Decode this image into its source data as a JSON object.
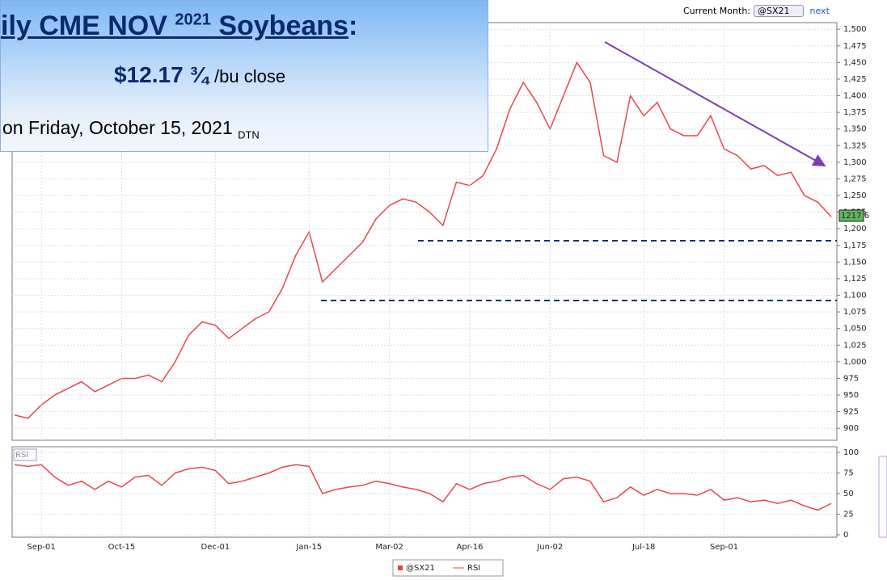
{
  "header": {
    "title_parts": [
      "ily CME NOV ",
      "2021",
      " Soybeans",
      ":"
    ],
    "price": "$12.17 ¾",
    "price_unit": "/bu close",
    "date": "on Friday, October 15, 2021",
    "source": "DTN"
  },
  "toolbar": {
    "label": "Current Month:",
    "symbol": "@SX21",
    "next": "next"
  },
  "last_price_tag": "1217 6",
  "chart_data": [
    {
      "type": "line",
      "series": [
        {
          "name": "@SX21",
          "color": "#e8474a",
          "values": [
            920,
            915,
            935,
            950,
            960,
            970,
            955,
            965,
            975,
            975,
            980,
            970,
            1000,
            1040,
            1060,
            1055,
            1035,
            1050,
            1065,
            1075,
            1110,
            1160,
            1195,
            1120,
            1140,
            1160,
            1180,
            1215,
            1235,
            1245,
            1240,
            1225,
            1205,
            1270,
            1265,
            1280,
            1320,
            1380,
            1420,
            1390,
            1350,
            1400,
            1450,
            1420,
            1310,
            1300,
            1400,
            1370,
            1390,
            1350,
            1340,
            1340,
            1370,
            1320,
            1310,
            1290,
            1295,
            1280,
            1285,
            1250,
            1240,
            1218
          ]
        }
      ],
      "ylim": [
        882,
        1510
      ],
      "yticks": [
        900,
        925,
        950,
        975,
        {
          "value": 1000,
          "label": "1,000"
        },
        {
          "value": 1025,
          "label": "1,025"
        },
        {
          "value": 1050,
          "label": "1,050"
        },
        {
          "value": 1075,
          "label": "1,075"
        },
        {
          "value": 1100,
          "label": "1,100"
        },
        {
          "value": 1125,
          "label": "1,125"
        },
        {
          "value": 1150,
          "label": "1,150"
        },
        {
          "value": 1175,
          "label": "1,175"
        },
        {
          "value": 1200,
          "label": "1,200"
        },
        {
          "value": 1225,
          "label": "1,225"
        },
        {
          "value": 1250,
          "label": "1,250"
        },
        {
          "value": 1275,
          "label": "1,275"
        },
        {
          "value": 1300,
          "label": "1,300"
        },
        {
          "value": 1325,
          "label": "1,325"
        },
        {
          "value": 1350,
          "label": "1,350"
        },
        {
          "value": 1375,
          "label": "1,375"
        },
        {
          "value": 1400,
          "label": "1,400"
        },
        {
          "value": 1425,
          "label": "1,425"
        },
        {
          "value": 1450,
          "label": "1,450"
        },
        {
          "value": 1475,
          "label": "1,475"
        },
        {
          "value": 1500,
          "label": "1,500"
        }
      ],
      "grid": true
    },
    {
      "type": "line",
      "title": "RSI",
      "categories": [
        null,
        null,
        "Sep-01",
        null,
        null,
        null,
        null,
        null,
        "Oct-15",
        null,
        null,
        null,
        null,
        null,
        null,
        "Dec-01",
        null,
        null,
        null,
        null,
        null,
        null,
        "Jan-15",
        null,
        null,
        null,
        null,
        null,
        "Mar-02",
        null,
        null,
        null,
        null,
        null,
        "Apr-16",
        null,
        null,
        null,
        null,
        null,
        "Jun-02",
        null,
        null,
        null,
        null,
        null,
        null,
        "Jul-18",
        null,
        null,
        null,
        null,
        null,
        "Sep-01",
        null,
        null,
        null,
        null,
        null,
        null,
        null,
        null
      ],
      "series": [
        {
          "name": "RSI",
          "color": "#e8474a",
          "values": [
            85,
            83,
            85,
            70,
            60,
            65,
            55,
            65,
            58,
            70,
            72,
            60,
            75,
            80,
            82,
            78,
            62,
            65,
            70,
            75,
            82,
            85,
            83,
            50,
            55,
            58,
            60,
            65,
            62,
            58,
            55,
            50,
            40,
            62,
            55,
            62,
            65,
            70,
            72,
            62,
            55,
            68,
            70,
            65,
            40,
            45,
            58,
            48,
            55,
            50,
            50,
            48,
            55,
            42,
            45,
            40,
            42,
            38,
            42,
            35,
            30,
            38
          ]
        }
      ],
      "ylim": [
        0,
        100
      ],
      "yticks": [
        0,
        25,
        50,
        75,
        100
      ],
      "grid": true
    }
  ]
}
